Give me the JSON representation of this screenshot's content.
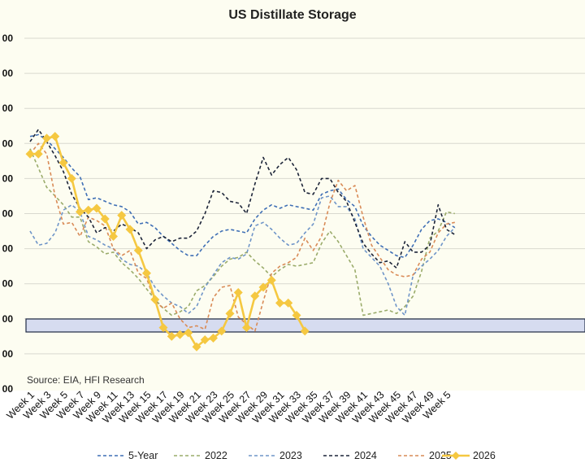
{
  "chart_data": {
    "type": "line",
    "title": "US Distillate Storage",
    "source_note": "Source: EIA, HFI Research",
    "xlabel": "",
    "ylabel": "",
    "y_tick_labels": [
      "00",
      "00",
      "00",
      "00",
      "00",
      "00",
      "00",
      "00",
      "00",
      "00",
      "00"
    ],
    "x_tick_labels": [
      "Week 1",
      "Week 3",
      "Week 5",
      "Week 7",
      "Week 9",
      "Week 11",
      "Week 13",
      "Week 15",
      "Week 17",
      "Week 19",
      "Week 21",
      "Week 23",
      "Week 25",
      "Week 27",
      "Week 29",
      "Week 31",
      "Week 33",
      "Week 35",
      "Week 37",
      "Week 39",
      "Week 41",
      "Week 43",
      "Week 45",
      "Week 47",
      "Week 49",
      "Week 5"
    ],
    "grid": true,
    "legend_position": "bottom",
    "colors": {
      "plot_background": "#fdfdf1",
      "gridline": "#d9d9d0",
      "band_fill": "#d6dcf0",
      "band_stroke": "#1f2a44"
    },
    "series": [
      {
        "name": "5-Year",
        "color": "#3f6fb5",
        "dash": "dash",
        "marker": "none",
        "x": [
          1,
          2,
          3,
          4,
          5,
          6,
          7,
          8,
          9,
          10,
          11,
          12,
          13,
          14,
          15,
          16,
          17,
          18,
          19,
          20,
          21,
          22,
          23,
          24,
          25,
          26,
          27,
          28,
          29,
          30,
          31,
          32,
          33,
          34,
          35,
          36,
          37,
          38,
          39,
          40,
          41,
          42,
          43,
          44,
          45,
          46,
          47,
          48,
          49,
          50,
          51,
          52
        ],
        "y": [
          7.2,
          7.25,
          7.1,
          6.85,
          6.6,
          6.3,
          6.05,
          5.4,
          5.45,
          5.35,
          5.25,
          5.2,
          5.05,
          4.7,
          4.75,
          4.6,
          4.35,
          4.15,
          3.95,
          3.8,
          3.8,
          4.1,
          4.35,
          4.5,
          4.55,
          4.5,
          4.45,
          4.85,
          5.1,
          5.25,
          5.15,
          5.25,
          5.2,
          5.15,
          5.1,
          5.55,
          5.65,
          5.7,
          5.4,
          5.2,
          4.65,
          4.35,
          4.1,
          3.95,
          3.8,
          3.75,
          4.1,
          4.55,
          4.8,
          4.85,
          4.75,
          4.6
        ]
      },
      {
        "name": "2022",
        "color": "#9aab6a",
        "dash": "dash",
        "marker": "none",
        "x": [
          1,
          2,
          3,
          4,
          5,
          6,
          7,
          8,
          9,
          10,
          11,
          12,
          13,
          14,
          15,
          16,
          17,
          18,
          19,
          20,
          21,
          22,
          23,
          24,
          25,
          26,
          27,
          28,
          29,
          30,
          31,
          32,
          33,
          34,
          35,
          36,
          37,
          38,
          39,
          40,
          41,
          42,
          43,
          44,
          45,
          46,
          47,
          48,
          49,
          50,
          51,
          52
        ],
        "y": [
          6.85,
          6.3,
          5.75,
          5.5,
          5.25,
          4.9,
          4.9,
          4.2,
          4.05,
          3.85,
          3.9,
          3.6,
          3.4,
          3.15,
          2.85,
          2.55,
          2.3,
          2.1,
          2.2,
          2.35,
          2.8,
          2.95,
          3.2,
          3.5,
          3.7,
          3.75,
          3.9,
          3.65,
          3.45,
          3.2,
          3.4,
          3.55,
          3.5,
          3.55,
          3.6,
          4.15,
          4.5,
          4.2,
          3.8,
          3.4,
          2.1,
          2.15,
          2.2,
          2.25,
          2.15,
          2.35,
          2.65,
          3.35,
          4.3,
          4.5,
          5.05,
          5.0
        ]
      },
      {
        "name": "2023",
        "color": "#6f95c8",
        "dash": "dash",
        "marker": "none",
        "x": [
          1,
          2,
          3,
          4,
          5,
          6,
          7,
          8,
          9,
          10,
          11,
          12,
          13,
          14,
          15,
          16,
          17,
          18,
          19,
          20,
          21,
          22,
          23,
          24,
          25,
          26,
          27,
          28,
          29,
          30,
          31,
          32,
          33,
          34,
          35,
          36,
          37,
          38,
          39,
          40,
          41,
          42,
          43,
          44,
          45,
          46,
          47,
          48,
          49,
          50,
          51,
          52
        ],
        "y": [
          4.5,
          4.1,
          4.15,
          4.45,
          5.1,
          5.25,
          5.05,
          4.35,
          4.25,
          4.1,
          4.0,
          3.7,
          3.55,
          3.5,
          3.3,
          2.9,
          2.65,
          2.45,
          2.35,
          2.15,
          2.35,
          2.9,
          3.25,
          3.6,
          3.75,
          3.7,
          3.85,
          4.65,
          4.75,
          4.55,
          4.3,
          4.1,
          4.15,
          4.45,
          4.7,
          5.45,
          5.5,
          5.2,
          5.2,
          4.85,
          4.0,
          3.75,
          3.5,
          3.0,
          2.35,
          2.1,
          3.25,
          3.5,
          3.7,
          3.95,
          4.35,
          4.6
        ]
      },
      {
        "name": "2024",
        "color": "#1c2438",
        "dash": "dash",
        "marker": "none",
        "x": [
          1,
          2,
          3,
          4,
          5,
          6,
          7,
          8,
          9,
          10,
          11,
          12,
          13,
          14,
          15,
          16,
          17,
          18,
          19,
          20,
          21,
          22,
          23,
          24,
          25,
          26,
          27,
          28,
          29,
          30,
          31,
          32,
          33,
          34,
          35,
          36,
          37,
          38,
          39,
          40,
          41,
          42,
          43,
          44,
          45,
          46,
          47,
          48,
          49,
          50,
          51,
          52
        ],
        "y": [
          7.05,
          7.4,
          7.05,
          6.65,
          6.2,
          5.55,
          5.15,
          4.9,
          4.45,
          4.6,
          4.5,
          4.7,
          4.6,
          4.45,
          4.0,
          4.25,
          4.35,
          4.2,
          4.3,
          4.3,
          4.5,
          5.0,
          5.65,
          5.6,
          5.35,
          5.3,
          5.0,
          5.85,
          6.6,
          6.1,
          6.4,
          6.6,
          6.25,
          5.6,
          5.55,
          6.0,
          6.0,
          5.6,
          5.35,
          4.75,
          4.15,
          3.85,
          3.6,
          3.65,
          3.45,
          4.2,
          3.9,
          3.9,
          4.1,
          5.25,
          4.55,
          4.4
        ]
      },
      {
        "name": "2025",
        "color": "#d98b57",
        "dash": "dash",
        "marker": "none",
        "x": [
          1,
          2,
          3,
          4,
          5,
          6,
          7,
          8,
          9,
          10,
          11,
          12,
          13,
          14,
          15,
          16,
          17,
          18,
          19,
          20,
          21,
          22,
          23,
          24,
          25,
          26,
          27,
          28,
          29,
          30,
          31,
          32,
          33,
          34,
          35,
          36,
          37,
          38,
          39,
          40,
          41,
          42,
          43,
          44,
          45,
          46,
          47,
          48,
          49,
          50,
          51,
          52
        ],
        "y": [
          6.7,
          7.0,
          6.7,
          5.5,
          4.7,
          4.75,
          4.35,
          4.9,
          4.8,
          4.65,
          4.0,
          3.8,
          3.95,
          3.3,
          3.15,
          2.5,
          2.3,
          2.45,
          2.0,
          1.75,
          1.8,
          1.7,
          2.6,
          2.9,
          2.95,
          2.05,
          1.85,
          1.65,
          2.5,
          3.3,
          3.5,
          3.6,
          3.75,
          4.3,
          3.95,
          4.35,
          5.3,
          5.95,
          5.65,
          5.8,
          4.9,
          4.1,
          3.75,
          3.4,
          3.25,
          3.2,
          3.25,
          3.7,
          3.9,
          4.45,
          4.7,
          4.75
        ]
      },
      {
        "name": "2026",
        "color": "#f5c841",
        "dash": "solid",
        "marker": "diamond",
        "x": [
          1,
          2,
          3,
          4,
          5,
          6,
          7,
          8,
          9,
          10,
          11,
          12,
          13,
          14,
          15,
          16,
          17,
          18,
          19,
          20,
          21,
          22,
          23,
          24,
          25,
          26,
          27,
          28,
          29,
          30,
          31,
          32,
          33,
          34,
          35
        ],
        "y": [
          6.7,
          6.7,
          7.15,
          7.2,
          6.45,
          6.0,
          5.05,
          5.1,
          5.15,
          4.85,
          4.35,
          4.95,
          4.55,
          3.95,
          3.3,
          2.55,
          1.75,
          1.5,
          1.55,
          1.6,
          1.2,
          1.4,
          1.45,
          1.65,
          2.15,
          2.75,
          1.75,
          2.65,
          2.9,
          3.1,
          2.45,
          2.45,
          2.1,
          1.65,
          null
        ]
      }
    ]
  }
}
